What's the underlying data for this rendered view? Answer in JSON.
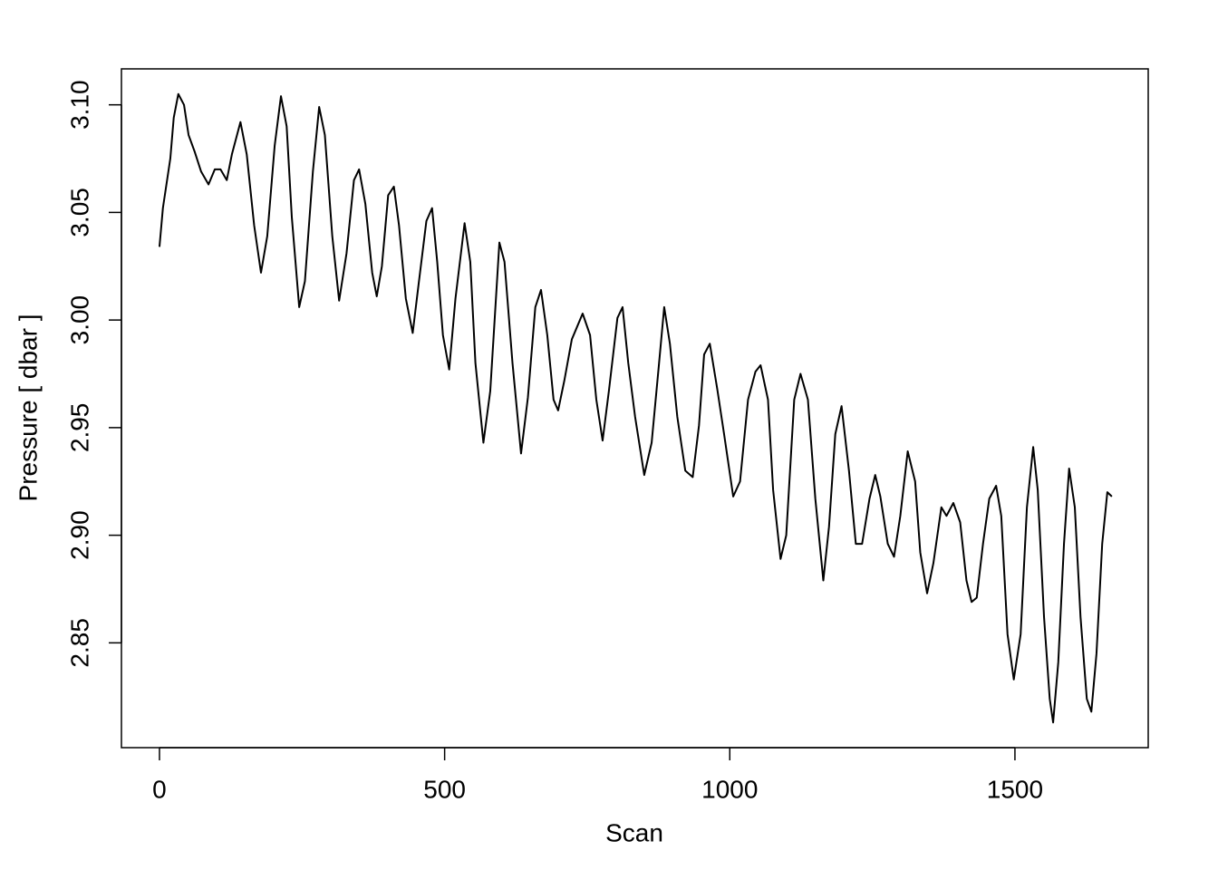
{
  "chart_data": {
    "type": "line",
    "x_label": "Scan",
    "y_label": "Pressure [ dbar ]",
    "color": "#000000",
    "x": [
      0,
      6,
      19,
      25,
      33,
      43,
      51,
      62,
      73,
      86,
      97,
      107,
      118,
      127,
      142,
      153,
      166,
      178,
      189,
      202,
      213,
      223,
      232,
      245,
      255,
      269,
      280,
      290,
      303,
      315,
      328,
      341,
      350,
      361,
      373,
      381,
      390,
      401,
      411,
      420,
      432,
      444,
      455,
      468,
      478,
      487,
      497,
      508,
      519,
      535,
      545,
      554,
      568,
      580,
      596,
      605,
      619,
      634,
      646,
      659,
      669,
      680,
      691,
      699,
      710,
      723,
      742,
      755,
      766,
      777,
      788,
      803,
      812,
      822,
      834,
      850,
      863,
      876,
      885,
      895,
      908,
      922,
      935,
      946,
      955,
      965,
      978,
      990,
      1006,
      1018,
      1032,
      1045,
      1054,
      1067,
      1076,
      1089,
      1099,
      1113,
      1124,
      1137,
      1150,
      1164,
      1174,
      1185,
      1196,
      1209,
      1221,
      1232,
      1245,
      1255,
      1264,
      1277,
      1288,
      1299,
      1312,
      1325,
      1334,
      1346,
      1357,
      1371,
      1380,
      1392,
      1404,
      1415,
      1424,
      1433,
      1444,
      1455,
      1467,
      1476,
      1487,
      1498,
      1510,
      1521,
      1532,
      1540,
      1551,
      1561,
      1567,
      1576,
      1586,
      1595,
      1605,
      1615,
      1626,
      1634,
      1643,
      1653,
      1662,
      1670
    ],
    "values": [
      3.034,
      3.052,
      3.075,
      3.094,
      3.105,
      3.1,
      3.086,
      3.078,
      3.069,
      3.063,
      3.07,
      3.07,
      3.065,
      3.077,
      3.092,
      3.077,
      3.044,
      3.022,
      3.039,
      3.081,
      3.104,
      3.09,
      3.048,
      3.006,
      3.018,
      3.069,
      3.099,
      3.086,
      3.039,
      3.009,
      3.031,
      3.065,
      3.07,
      3.054,
      3.022,
      3.011,
      3.025,
      3.058,
      3.062,
      3.044,
      3.01,
      2.994,
      3.018,
      3.046,
      3.052,
      3.027,
      2.993,
      2.977,
      3.01,
      3.045,
      3.027,
      2.98,
      2.943,
      2.967,
      3.036,
      3.027,
      2.98,
      2.938,
      2.964,
      3.006,
      3.014,
      2.993,
      2.963,
      2.958,
      2.972,
      2.991,
      3.003,
      2.993,
      2.963,
      2.944,
      2.967,
      3.001,
      3.006,
      2.98,
      2.955,
      2.928,
      2.943,
      2.98,
      3.006,
      2.989,
      2.955,
      2.93,
      2.927,
      2.951,
      2.984,
      2.989,
      2.968,
      2.947,
      2.918,
      2.925,
      2.963,
      2.976,
      2.979,
      2.963,
      2.921,
      2.889,
      2.9,
      2.963,
      2.975,
      2.963,
      2.917,
      2.879,
      2.904,
      2.947,
      2.96,
      2.93,
      2.896,
      2.896,
      2.917,
      2.928,
      2.918,
      2.896,
      2.89,
      2.909,
      2.939,
      2.925,
      2.892,
      2.873,
      2.887,
      2.913,
      2.909,
      2.915,
      2.906,
      2.879,
      2.869,
      2.871,
      2.896,
      2.917,
      2.923,
      2.909,
      2.854,
      2.833,
      2.854,
      2.913,
      2.941,
      2.921,
      2.862,
      2.824,
      2.813,
      2.841,
      2.896,
      2.931,
      2.913,
      2.862,
      2.824,
      2.818,
      2.845,
      2.896,
      2.92,
      2.918
    ],
    "xlim": [
      -66.7,
      1733.7
    ],
    "ylim": [
      2.8013,
      3.1167
    ],
    "xticks": [
      0,
      500,
      1000,
      1500
    ],
    "yticks": [
      2.85,
      {
        "value": 2.9,
        "label": "2.90"
      },
      2.95,
      {
        "value": 3,
        "label": "3.00"
      },
      3.05,
      {
        "value": 3.1,
        "label": "3.10"
      }
    ]
  }
}
